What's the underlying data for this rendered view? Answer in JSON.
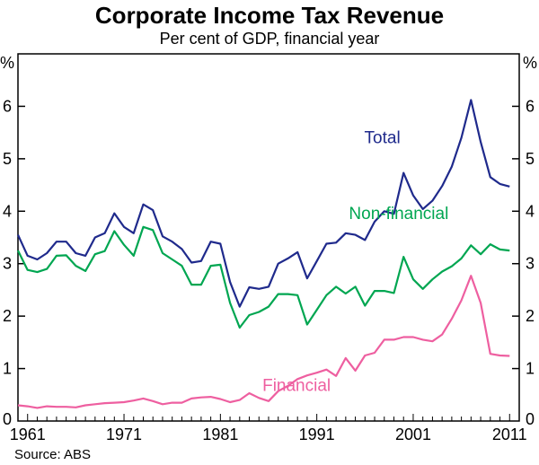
{
  "chart_data": {
    "type": "line",
    "title": "Corporate Income Tax Revenue",
    "subtitle": "Per cent of GDP, financial year",
    "source": "Source: ABS",
    "ylabel_left": "%",
    "ylabel_right": "%",
    "ylim": [
      0,
      7
    ],
    "yticks": [
      0,
      1,
      2,
      3,
      4,
      5,
      6
    ],
    "xlim": [
      1960,
      2012
    ],
    "xticks": [
      1961,
      1971,
      1981,
      1991,
      2001,
      2011
    ],
    "grid": false,
    "x": [
      1960,
      1961,
      1962,
      1963,
      1964,
      1965,
      1966,
      1967,
      1968,
      1969,
      1970,
      1971,
      1972,
      1973,
      1974,
      1975,
      1976,
      1977,
      1978,
      1979,
      1980,
      1981,
      1982,
      1983,
      1984,
      1985,
      1986,
      1987,
      1988,
      1989,
      1990,
      1991,
      1992,
      1993,
      1994,
      1995,
      1996,
      1997,
      1998,
      1999,
      2000,
      2001,
      2002,
      2003,
      2004,
      2005,
      2006,
      2007,
      2008,
      2009,
      2010,
      2011
    ],
    "series": [
      {
        "name": "Total",
        "color": "#1f2a8c",
        "label_x": 1997.8,
        "label_y": 5.3,
        "values": [
          3.55,
          3.15,
          3.08,
          3.2,
          3.42,
          3.42,
          3.2,
          3.15,
          3.5,
          3.58,
          3.96,
          3.7,
          3.58,
          4.13,
          4.02,
          3.52,
          3.42,
          3.28,
          3.02,
          3.05,
          3.42,
          3.38,
          2.65,
          2.18,
          2.55,
          2.52,
          2.56,
          3.0,
          3.1,
          3.22,
          2.72,
          3.05,
          3.38,
          3.4,
          3.58,
          3.55,
          3.45,
          3.8,
          4.0,
          3.95,
          4.73,
          4.3,
          4.04,
          4.2,
          4.48,
          4.85,
          5.4,
          6.12,
          5.32,
          4.65,
          4.52,
          4.47
        ]
      },
      {
        "name": "Non-financial",
        "color": "#00a651",
        "label_x": 1999.5,
        "label_y": 3.85,
        "values": [
          3.25,
          2.88,
          2.84,
          2.9,
          3.15,
          3.16,
          2.96,
          2.86,
          3.18,
          3.24,
          3.62,
          3.36,
          3.15,
          3.7,
          3.64,
          3.2,
          3.08,
          2.96,
          2.6,
          2.6,
          2.96,
          2.98,
          2.25,
          1.78,
          2.02,
          2.08,
          2.18,
          2.42,
          2.42,
          2.4,
          1.84,
          2.12,
          2.4,
          2.56,
          2.43,
          2.56,
          2.2,
          2.48,
          2.48,
          2.44,
          3.13,
          2.7,
          2.52,
          2.7,
          2.85,
          2.95,
          3.1,
          3.35,
          3.18,
          3.37,
          3.27,
          3.25
        ]
      },
      {
        "name": "Financial",
        "color": "#ee5fa0",
        "label_x": 1988.9,
        "label_y": 0.57,
        "values": [
          0.3,
          0.28,
          0.25,
          0.28,
          0.27,
          0.27,
          0.26,
          0.3,
          0.32,
          0.34,
          0.35,
          0.36,
          0.39,
          0.43,
          0.38,
          0.32,
          0.35,
          0.35,
          0.43,
          0.45,
          0.46,
          0.42,
          0.36,
          0.4,
          0.53,
          0.44,
          0.38,
          0.57,
          0.67,
          0.8,
          0.87,
          0.92,
          0.98,
          0.86,
          1.2,
          0.96,
          1.25,
          1.3,
          1.55,
          1.55,
          1.6,
          1.6,
          1.55,
          1.52,
          1.65,
          1.95,
          2.3,
          2.77,
          2.25,
          1.28,
          1.25,
          1.24
        ]
      }
    ]
  }
}
